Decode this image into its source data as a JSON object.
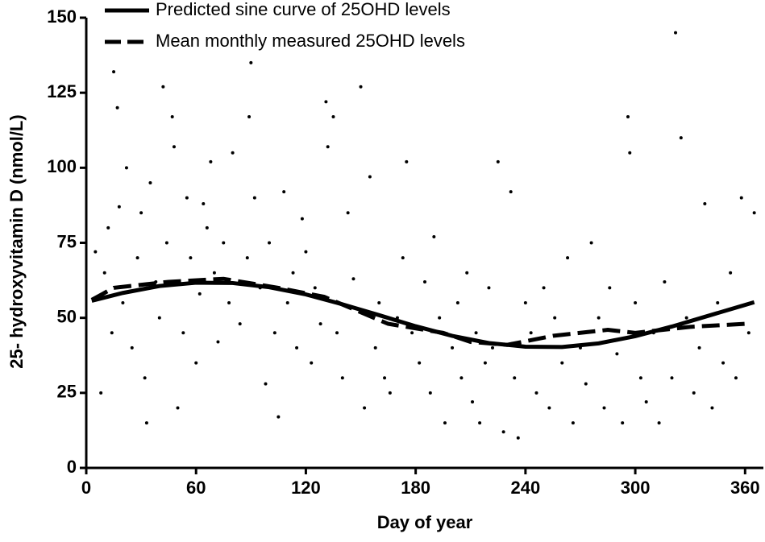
{
  "chart_data": {
    "type": "scatter",
    "xlabel": "Day of year",
    "ylabel": "25- hydroxyvitamin D (nmol/L)",
    "xlim": [
      0,
      370
    ],
    "xticks": [
      0,
      60,
      120,
      180,
      240,
      300,
      360
    ],
    "ylim": [
      0,
      150
    ],
    "yticks": [
      0,
      25,
      50,
      75,
      100,
      125,
      150
    ],
    "legend": "top-left",
    "series": [
      {
        "type": "scatter",
        "color": "#000000",
        "x": [
          5,
          8,
          10,
          12,
          14,
          15,
          17,
          18,
          20,
          22,
          25,
          28,
          30,
          32,
          33,
          35,
          38,
          40,
          42,
          44,
          47,
          48,
          50,
          53,
          55,
          57,
          60,
          62,
          64,
          66,
          68,
          70,
          72,
          75,
          78,
          80,
          84,
          88,
          89,
          90,
          92,
          95,
          98,
          100,
          103,
          105,
          108,
          110,
          113,
          115,
          118,
          120,
          123,
          125,
          128,
          131,
          132,
          135,
          137,
          140,
          143,
          146,
          150,
          152,
          155,
          158,
          160,
          163,
          166,
          170,
          173,
          175,
          178,
          182,
          185,
          188,
          190,
          193,
          196,
          200,
          203,
          205,
          208,
          211,
          213,
          215,
          218,
          220,
          222,
          225,
          228,
          232,
          234,
          236,
          240,
          243,
          246,
          250,
          253,
          256,
          260,
          263,
          266,
          270,
          273,
          276,
          280,
          283,
          286,
          290,
          293,
          296,
          297,
          300,
          303,
          306,
          310,
          313,
          316,
          320,
          322,
          325,
          328,
          332,
          335,
          338,
          342,
          345,
          348,
          352,
          355,
          358,
          362,
          365
        ],
        "values": [
          72,
          25,
          65,
          80,
          45,
          132,
          120,
          87,
          55,
          100,
          40,
          70,
          85,
          30,
          15,
          95,
          62,
          50,
          127,
          75,
          117,
          107,
          20,
          45,
          90,
          70,
          35,
          58,
          88,
          80,
          102,
          65,
          42,
          75,
          55,
          105,
          48,
          70,
          117,
          135,
          90,
          60,
          28,
          75,
          45,
          17,
          92,
          55,
          65,
          40,
          83,
          72,
          35,
          60,
          48,
          122,
          107,
          117,
          45,
          30,
          85,
          63,
          127,
          20,
          97,
          40,
          55,
          30,
          25,
          50,
          70,
          102,
          45,
          35,
          62,
          25,
          77,
          50,
          15,
          40,
          55,
          30,
          65,
          22,
          45,
          15,
          35,
          60,
          40,
          102,
          12,
          92,
          30,
          10,
          55,
          45,
          25,
          60,
          20,
          50,
          35,
          70,
          15,
          40,
          28,
          75,
          50,
          20,
          60,
          38,
          15,
          117,
          105,
          55,
          30,
          22,
          45,
          15,
          62,
          30,
          145,
          110,
          50,
          25,
          40,
          88,
          20,
          55,
          35,
          65,
          30,
          90,
          45,
          85
        ]
      },
      {
        "type": "line",
        "style": "solid",
        "name": "Predicted sine curve of 25OHD levels",
        "color": "#000000",
        "x": [
          3,
          20,
          40,
          60,
          80,
          100,
          120,
          140,
          160,
          180,
          200,
          220,
          240,
          260,
          280,
          300,
          320,
          340,
          365
        ],
        "values": [
          55.7,
          58.3,
          60.6,
          61.7,
          61.6,
          60.2,
          57.8,
          54.5,
          50.9,
          47.2,
          44.0,
          41.6,
          40.4,
          40.3,
          41.5,
          43.9,
          47.1,
          50.7,
          55.2
        ]
      },
      {
        "type": "line",
        "style": "dashed",
        "name": "Mean monthly measured 25OHD levels",
        "color": "#000000",
        "x": [
          3,
          15,
          45,
          75,
          105,
          130,
          165,
          195,
          210,
          230,
          255,
          285,
          300,
          330,
          360
        ],
        "values": [
          56,
          60,
          62,
          63,
          60,
          57,
          48,
          45,
          42,
          41,
          44,
          46,
          45,
          47,
          48
        ]
      }
    ]
  }
}
